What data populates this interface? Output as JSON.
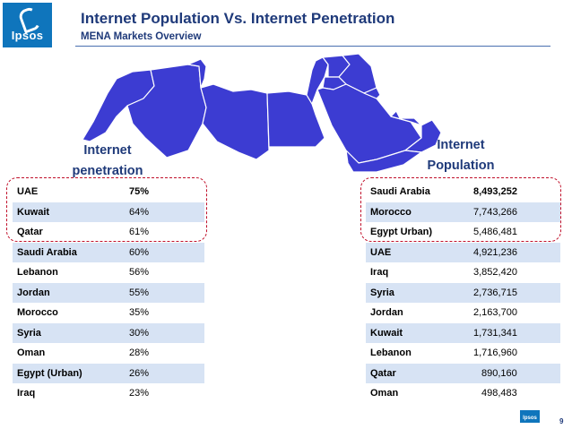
{
  "brand": {
    "logo_text": "Ipsos",
    "accent": "#0f75bc",
    "map_fill": "#3c3cd2",
    "highlight": "#c0102a"
  },
  "header": {
    "title": "Internet Population Vs. Internet Penetration",
    "subtitle": "MENA Markets Overview"
  },
  "left_heading": {
    "line1": "Internet",
    "line2": "penetration"
  },
  "right_heading": {
    "line1": "Internet",
    "line2": "Population"
  },
  "penetration": [
    {
      "country": "UAE",
      "value": "75%"
    },
    {
      "country": "Kuwait",
      "value": "64%"
    },
    {
      "country": "Qatar",
      "value": "61%"
    },
    {
      "country": "Saudi Arabia",
      "value": "60%"
    },
    {
      "country": "Lebanon",
      "value": "56%"
    },
    {
      "country": "Jordan",
      "value": "55%"
    },
    {
      "country": "Morocco",
      "value": "35%"
    },
    {
      "country": "Syria",
      "value": "30%"
    },
    {
      "country": "Oman",
      "value": "28%"
    },
    {
      "country": "Egypt (Urban)",
      "value": "26%"
    },
    {
      "country": "Iraq",
      "value": "23%"
    }
  ],
  "population": [
    {
      "country": "Saudi Arabia",
      "value": "8,493,252"
    },
    {
      "country": "Morocco",
      "value": "7,743,266"
    },
    {
      "country": "Egypt Urban)",
      "value": "5,486,481"
    },
    {
      "country": "UAE",
      "value": "4,921,236"
    },
    {
      "country": "Iraq",
      "value": "3,852,420"
    },
    {
      "country": "Syria",
      "value": "2,736,715"
    },
    {
      "country": "Jordan",
      "value": "2,163,700"
    },
    {
      "country": "Kuwait",
      "value": "1,731,341"
    },
    {
      "country": "Lebanon",
      "value": "1,716,960"
    },
    {
      "country": "Qatar",
      "value": "890,160"
    },
    {
      "country": "Oman",
      "value": "498,483"
    }
  ],
  "footer": {
    "logo_text": "Ipsos",
    "page_number": "9"
  }
}
